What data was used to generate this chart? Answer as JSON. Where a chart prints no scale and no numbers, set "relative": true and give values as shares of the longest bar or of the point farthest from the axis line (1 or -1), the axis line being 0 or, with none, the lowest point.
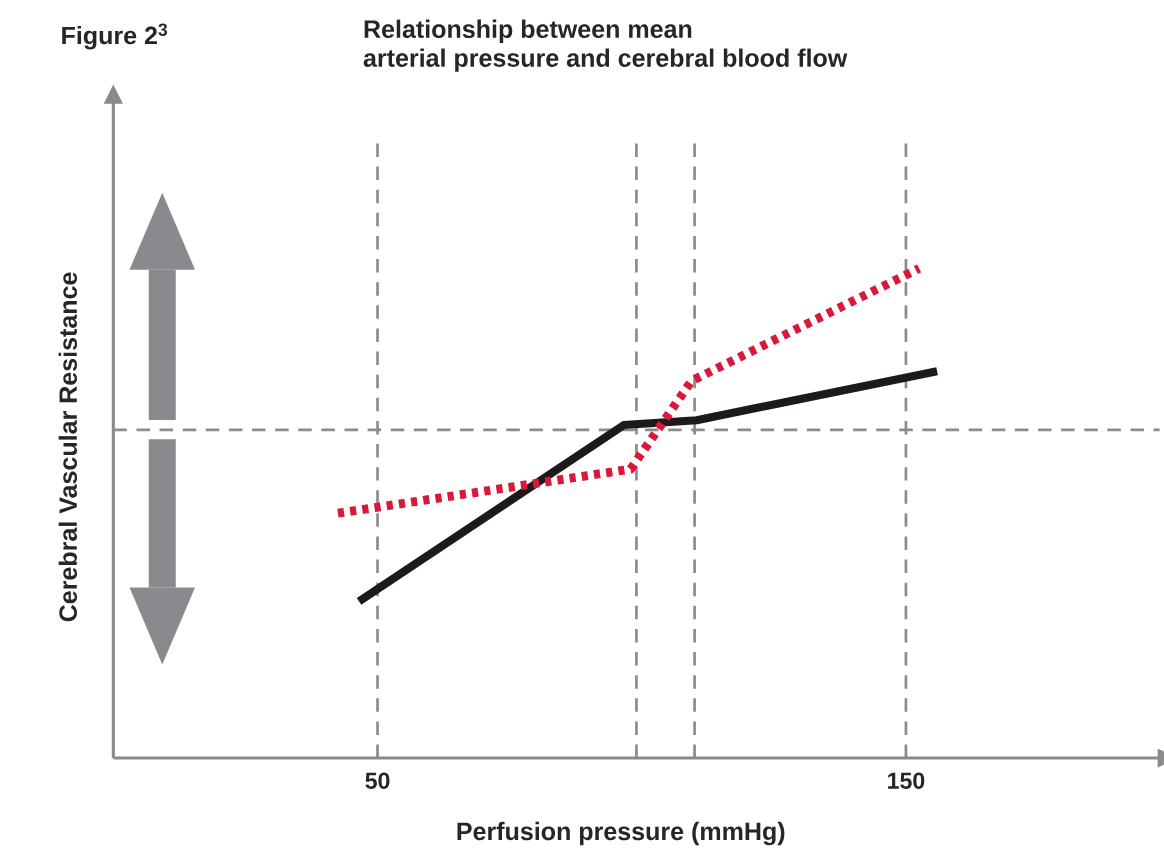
{
  "chart_data": {
    "type": "line",
    "title": "Relationship between mean\narterial pressure and cerebral blood flow",
    "annotations": [
      "Figure 2$^{3}$"
    ],
    "xlabel": "Perfusion pressure (mmHg)",
    "ylabel": "Cerebral Vascular Resistance",
    "relative": true,
    "xlim": [
      0,
      198
    ],
    "xticks": [
      50,
      150
    ],
    "grid": false,
    "series": [
      {
        "color": "#1e1a1a",
        "line_style": "solid",
        "x": [
          46.5,
          96.6,
          110.4,
          155.9
        ],
        "values": [
          0.32,
          0.68,
          0.69,
          0.79
        ]
      },
      {
        "color": "#d7193a",
        "line_style": "dotted",
        "x": [
          42.5,
          97.9,
          109.4,
          152.5
        ],
        "values": [
          0.5,
          0.59,
          0.77,
          1.0
        ]
      }
    ],
    "ref_lines": [
      {
        "axis": "x",
        "value": 50,
        "color": "#8c8c8c",
        "line_style": "dashed"
      },
      {
        "axis": "x",
        "value": 99,
        "color": "#8c8c8c",
        "line_style": "dashed"
      },
      {
        "axis": "x",
        "value": 110,
        "color": "#8c8c8c",
        "line_style": "dashed"
      },
      {
        "axis": "x",
        "value": 150,
        "color": "#8c8c8c",
        "line_style": "dashed"
      },
      {
        "axis": "y",
        "value": 0.67,
        "color": "#8c8c8c",
        "line_style": "dashed"
      }
    ]
  }
}
